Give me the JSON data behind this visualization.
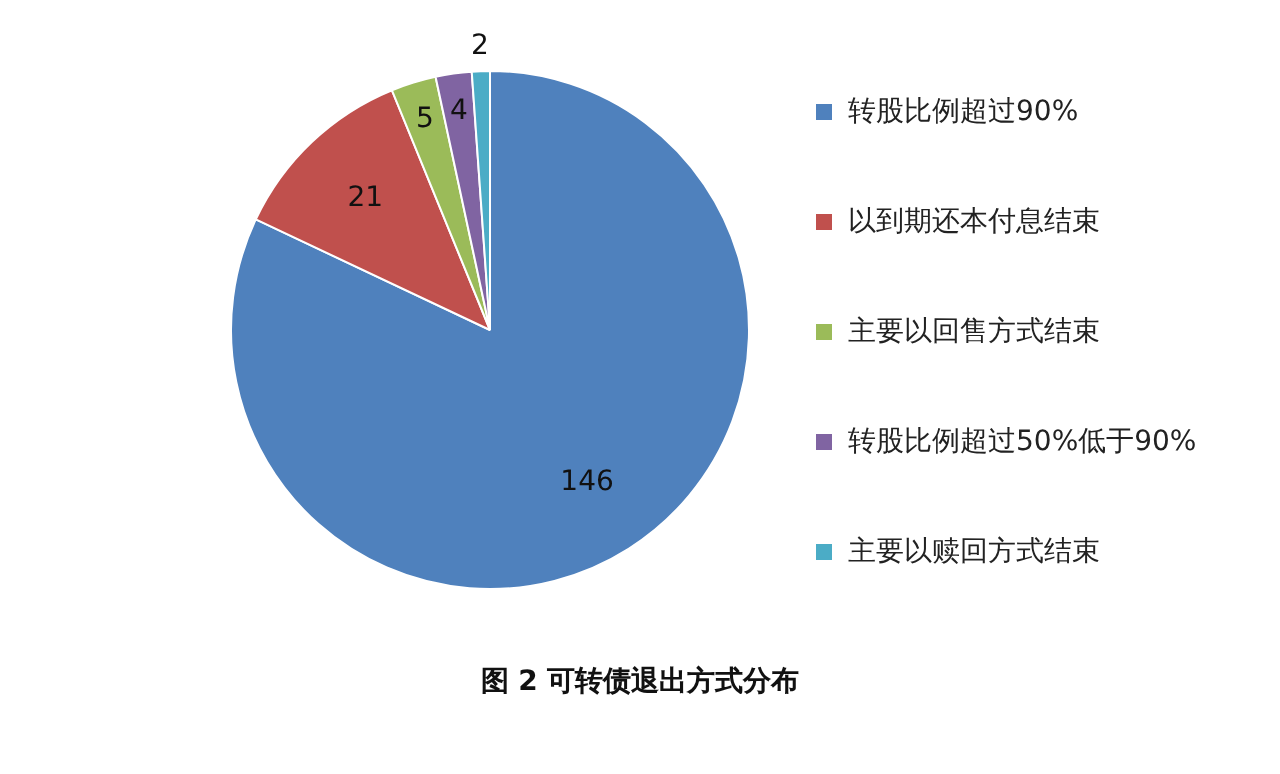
{
  "chart_data": {
    "type": "pie",
    "title": "图 2  可转债退出方式分布",
    "categories": [
      "转股比例超过90%",
      "以到期还本付息结束",
      "主要以回售方式结束",
      "转股比例超过50%低于90%",
      "主要以赎回方式结束"
    ],
    "values": [
      146,
      21,
      5,
      4,
      2
    ],
    "colors": [
      "#4f81bd",
      "#c0504d",
      "#9bbb59",
      "#8064a2",
      "#4bacc6"
    ],
    "data_labels": true,
    "legend": "right"
  }
}
